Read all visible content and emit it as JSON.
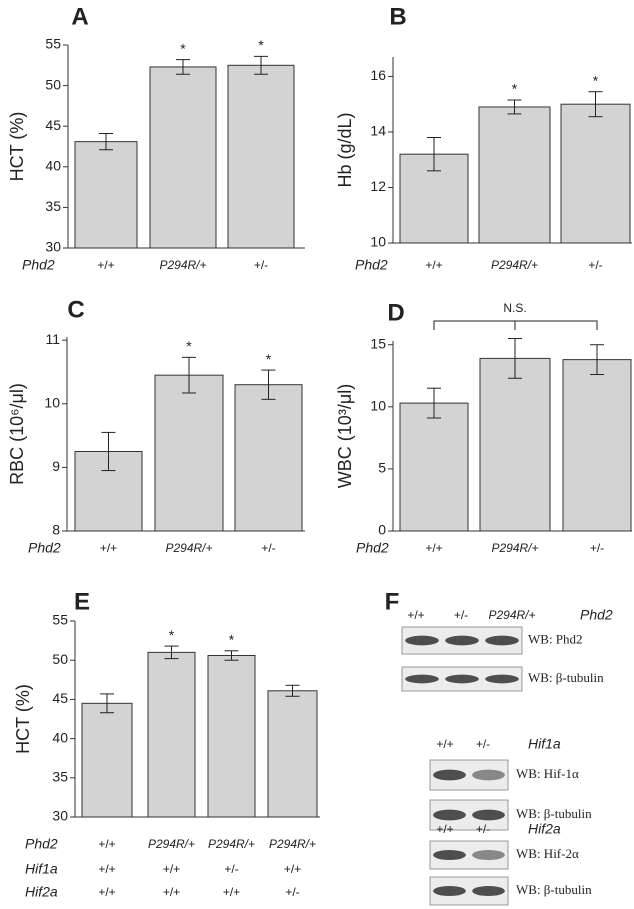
{
  "chart_data": [
    {
      "type": "bar",
      "panel": "A",
      "ylabel": "HCT (%)",
      "category_label": "Phd2",
      "categories": [
        "+/+",
        "P294R/+",
        "+/-"
      ],
      "values": [
        43.1,
        52.3,
        52.5
      ],
      "errors": [
        1.0,
        0.9,
        1.1
      ],
      "significance": [
        null,
        "*",
        "*"
      ],
      "color": "#d3d3d3",
      "ylim": [
        30,
        55
      ],
      "yticks": [
        30,
        35,
        40,
        45,
        50,
        55
      ]
    },
    {
      "type": "bar",
      "panel": "B",
      "ylabel": "Hb (g/dL)",
      "category_label": "Phd2",
      "categories": [
        "+/+",
        "P294R/+",
        "+/-"
      ],
      "values": [
        13.2,
        14.9,
        15.0
      ],
      "errors": [
        0.6,
        0.25,
        0.45
      ],
      "significance": [
        null,
        "*",
        "*"
      ],
      "color": "#d3d3d3",
      "ylim": [
        10,
        16.7
      ],
      "yticks": [
        10,
        12,
        14,
        16
      ]
    },
    {
      "type": "bar",
      "panel": "C",
      "ylabel": "RBC (10⁶/μl)",
      "category_label": "Phd2",
      "categories": [
        "+/+",
        "P294R/+",
        "+/-"
      ],
      "values": [
        9.25,
        10.45,
        10.3
      ],
      "errors": [
        0.3,
        0.28,
        0.23
      ],
      "significance": [
        null,
        "*",
        "*"
      ],
      "color": "#d3d3d3",
      "ylim": [
        8,
        11.05
      ],
      "yticks": [
        8,
        9,
        10,
        11
      ]
    },
    {
      "type": "bar",
      "panel": "D",
      "ylabel": "WBC (10³/μl)",
      "category_label": "Phd2",
      "categories": [
        "+/+",
        "P294R/+",
        "+/-"
      ],
      "values": [
        10.3,
        13.9,
        13.8
      ],
      "errors": [
        1.2,
        1.6,
        1.2
      ],
      "annotation": "N.S.",
      "color": "#d3d3d3",
      "ylim": [
        0,
        15.3
      ],
      "yticks": [
        0,
        5,
        10,
        15
      ]
    },
    {
      "type": "bar",
      "panel": "E",
      "ylabel": "HCT (%)",
      "category_rows": [
        {
          "name": "Phd2",
          "labels": [
            "+/+",
            "P294R/+",
            "P294R/+",
            "P294R/+"
          ]
        },
        {
          "name": "Hif1a",
          "labels": [
            "+/+",
            "+/+",
            "+/-",
            "+/+"
          ]
        },
        {
          "name": "Hif2a",
          "labels": [
            "+/+",
            "+/+",
            "+/+",
            "+/-"
          ]
        }
      ],
      "values": [
        44.5,
        51.0,
        50.6,
        46.1
      ],
      "errors": [
        1.2,
        0.8,
        0.6,
        0.7
      ],
      "significance": [
        null,
        "*",
        "*",
        null
      ],
      "color": "#d3d3d3",
      "ylim": [
        30,
        55
      ],
      "yticks": [
        30,
        35,
        40,
        45,
        50,
        55
      ]
    }
  ],
  "blots": {
    "panel": "F",
    "groups": [
      {
        "lanes": [
          "+/+",
          "+/-",
          "P294R/+"
        ],
        "gene": "Phd2",
        "rows": [
          "WB: Phd2",
          "WB: β-tubulin"
        ]
      },
      {
        "lanes": [
          "+/+",
          "+/-"
        ],
        "gene": "Hif1a",
        "rows": [
          "WB: Hif-1α",
          "WB: β-tubulin"
        ]
      },
      {
        "lanes": [
          "+/+",
          "+/-"
        ],
        "gene": "Hif2a",
        "rows": [
          "WB: Hif-2α",
          "WB: β-tubulin"
        ]
      }
    ]
  }
}
